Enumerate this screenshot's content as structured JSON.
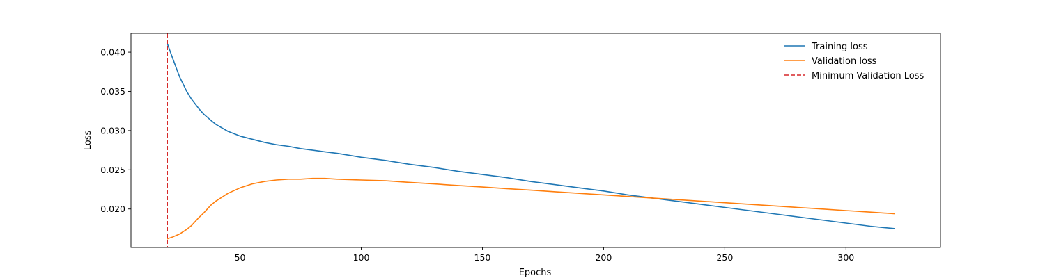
{
  "chart_data": {
    "type": "line",
    "title": "",
    "xlabel": "Epochs",
    "ylabel": "Loss",
    "xlim": [
      5,
      339
    ],
    "ylim": [
      0.0151,
      0.0424
    ],
    "xticks": [
      50,
      100,
      150,
      200,
      250,
      300
    ],
    "yticks": [
      0.02,
      0.025,
      0.03,
      0.035,
      0.04
    ],
    "xtick_labels": [
      "50",
      "100",
      "150",
      "200",
      "250",
      "300"
    ],
    "ytick_labels": [
      "0.020",
      "0.025",
      "0.030",
      "0.035",
      "0.040"
    ],
    "grid": false,
    "legend_position": "top-right",
    "x": [
      20,
      22,
      25,
      28,
      30,
      33,
      35,
      38,
      40,
      45,
      50,
      55,
      60,
      65,
      70,
      75,
      80,
      85,
      90,
      100,
      110,
      120,
      130,
      140,
      150,
      160,
      170,
      180,
      190,
      200,
      210,
      220,
      230,
      240,
      250,
      260,
      270,
      280,
      290,
      300,
      310,
      320
    ],
    "series": [
      {
        "name": "Training loss",
        "color": "#1f77b4",
        "style": "solid",
        "values": [
          0.0411,
          0.0394,
          0.0369,
          0.035,
          0.034,
          0.0328,
          0.0321,
          0.0313,
          0.0308,
          0.0299,
          0.0293,
          0.0289,
          0.0285,
          0.0282,
          0.028,
          0.0277,
          0.0275,
          0.0273,
          0.0271,
          0.0266,
          0.0262,
          0.0257,
          0.0253,
          0.0248,
          0.0244,
          0.024,
          0.0235,
          0.0231,
          0.0227,
          0.0223,
          0.0218,
          0.0214,
          0.021,
          0.0206,
          0.0202,
          0.0198,
          0.0194,
          0.019,
          0.0186,
          0.0182,
          0.0178,
          0.0175
        ]
      },
      {
        "name": "Validation loss",
        "color": "#ff7f0e",
        "style": "solid",
        "values": [
          0.0162,
          0.0164,
          0.0168,
          0.0174,
          0.0179,
          0.0189,
          0.0195,
          0.0205,
          0.021,
          0.022,
          0.0227,
          0.0232,
          0.0235,
          0.0237,
          0.0238,
          0.0238,
          0.0239,
          0.0239,
          0.0238,
          0.0237,
          0.0236,
          0.0234,
          0.0232,
          0.023,
          0.0228,
          0.0226,
          0.0224,
          0.0222,
          0.022,
          0.0218,
          0.0216,
          0.0214,
          0.0212,
          0.021,
          0.0208,
          0.0206,
          0.0204,
          0.0202,
          0.02,
          0.0198,
          0.0196,
          0.0194
        ]
      }
    ],
    "vline": {
      "name": "Minimum Validation Loss",
      "x": 20,
      "color": "#d62728",
      "style": "dashed"
    }
  }
}
